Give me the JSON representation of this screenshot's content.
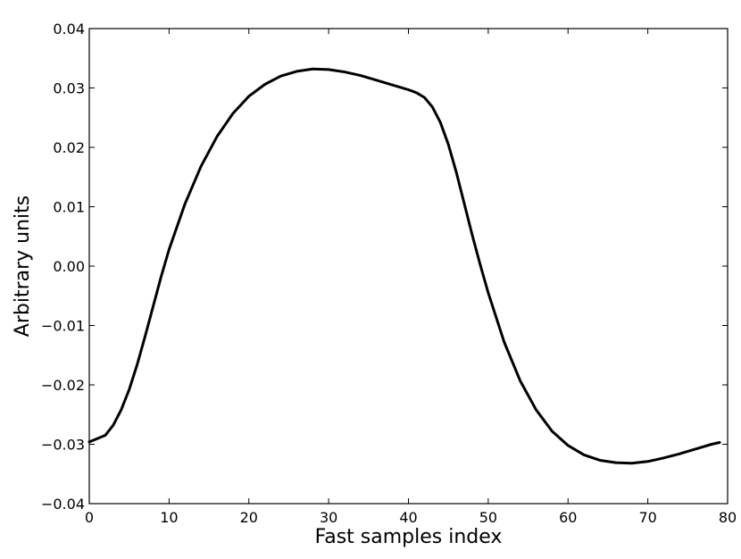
{
  "chart_data": {
    "type": "line",
    "title": "",
    "xlabel": "Fast samples index",
    "ylabel": "Arbitrary units",
    "xlim": [
      0,
      80
    ],
    "ylim": [
      -0.04,
      0.04
    ],
    "grid": false,
    "x_ticks": [
      {
        "value": 0,
        "label": "0"
      },
      {
        "value": 10,
        "label": "10"
      },
      {
        "value": 20,
        "label": "20"
      },
      {
        "value": 30,
        "label": "30"
      },
      {
        "value": 40,
        "label": "40"
      },
      {
        "value": 50,
        "label": "50"
      },
      {
        "value": 60,
        "label": "60"
      },
      {
        "value": 70,
        "label": "70"
      },
      {
        "value": 80,
        "label": "80"
      }
    ],
    "y_ticks": [
      {
        "value": -0.04,
        "label": "−0.04"
      },
      {
        "value": -0.03,
        "label": "−0.03"
      },
      {
        "value": -0.02,
        "label": "−0.02"
      },
      {
        "value": -0.01,
        "label": "−0.01"
      },
      {
        "value": 0.0,
        "label": "0.00"
      },
      {
        "value": 0.01,
        "label": "0.01"
      },
      {
        "value": 0.02,
        "label": "0.02"
      },
      {
        "value": 0.03,
        "label": "0.03"
      },
      {
        "value": 0.04,
        "label": "0.04"
      }
    ],
    "series": [
      {
        "color": "#000000",
        "points": [
          [
            0,
            -0.0296
          ],
          [
            2,
            -0.0285
          ],
          [
            3,
            -0.0268
          ],
          [
            4,
            -0.0242
          ],
          [
            5,
            -0.0208
          ],
          [
            6,
            -0.0166
          ],
          [
            7,
            -0.0118
          ],
          [
            8,
            -0.0068
          ],
          [
            9,
            -0.0018
          ],
          [
            10,
            0.0028
          ],
          [
            12,
            0.0105
          ],
          [
            14,
            0.0168
          ],
          [
            16,
            0.0218
          ],
          [
            18,
            0.0257
          ],
          [
            20,
            0.0286
          ],
          [
            22,
            0.0306
          ],
          [
            24,
            0.032
          ],
          [
            26,
            0.0328
          ],
          [
            28,
            0.0332
          ],
          [
            30,
            0.0331
          ],
          [
            32,
            0.0327
          ],
          [
            34,
            0.0321
          ],
          [
            36,
            0.0313
          ],
          [
            38,
            0.0305
          ],
          [
            40,
            0.0297
          ],
          [
            41,
            0.0292
          ],
          [
            42,
            0.0284
          ],
          [
            43,
            0.0268
          ],
          [
            44,
            0.0242
          ],
          [
            45,
            0.0205
          ],
          [
            46,
            0.0158
          ],
          [
            47,
            0.0105
          ],
          [
            48,
            0.0052
          ],
          [
            49,
            0.0002
          ],
          [
            50,
            -0.0045
          ],
          [
            52,
            -0.0128
          ],
          [
            54,
            -0.0193
          ],
          [
            56,
            -0.0242
          ],
          [
            58,
            -0.0278
          ],
          [
            60,
            -0.0302
          ],
          [
            62,
            -0.0318
          ],
          [
            64,
            -0.0327
          ],
          [
            66,
            -0.0331
          ],
          [
            68,
            -0.0332
          ],
          [
            70,
            -0.0329
          ],
          [
            72,
            -0.0323
          ],
          [
            74,
            -0.0316
          ],
          [
            76,
            -0.0308
          ],
          [
            78,
            -0.03
          ],
          [
            79,
            -0.0297
          ]
        ]
      }
    ]
  }
}
